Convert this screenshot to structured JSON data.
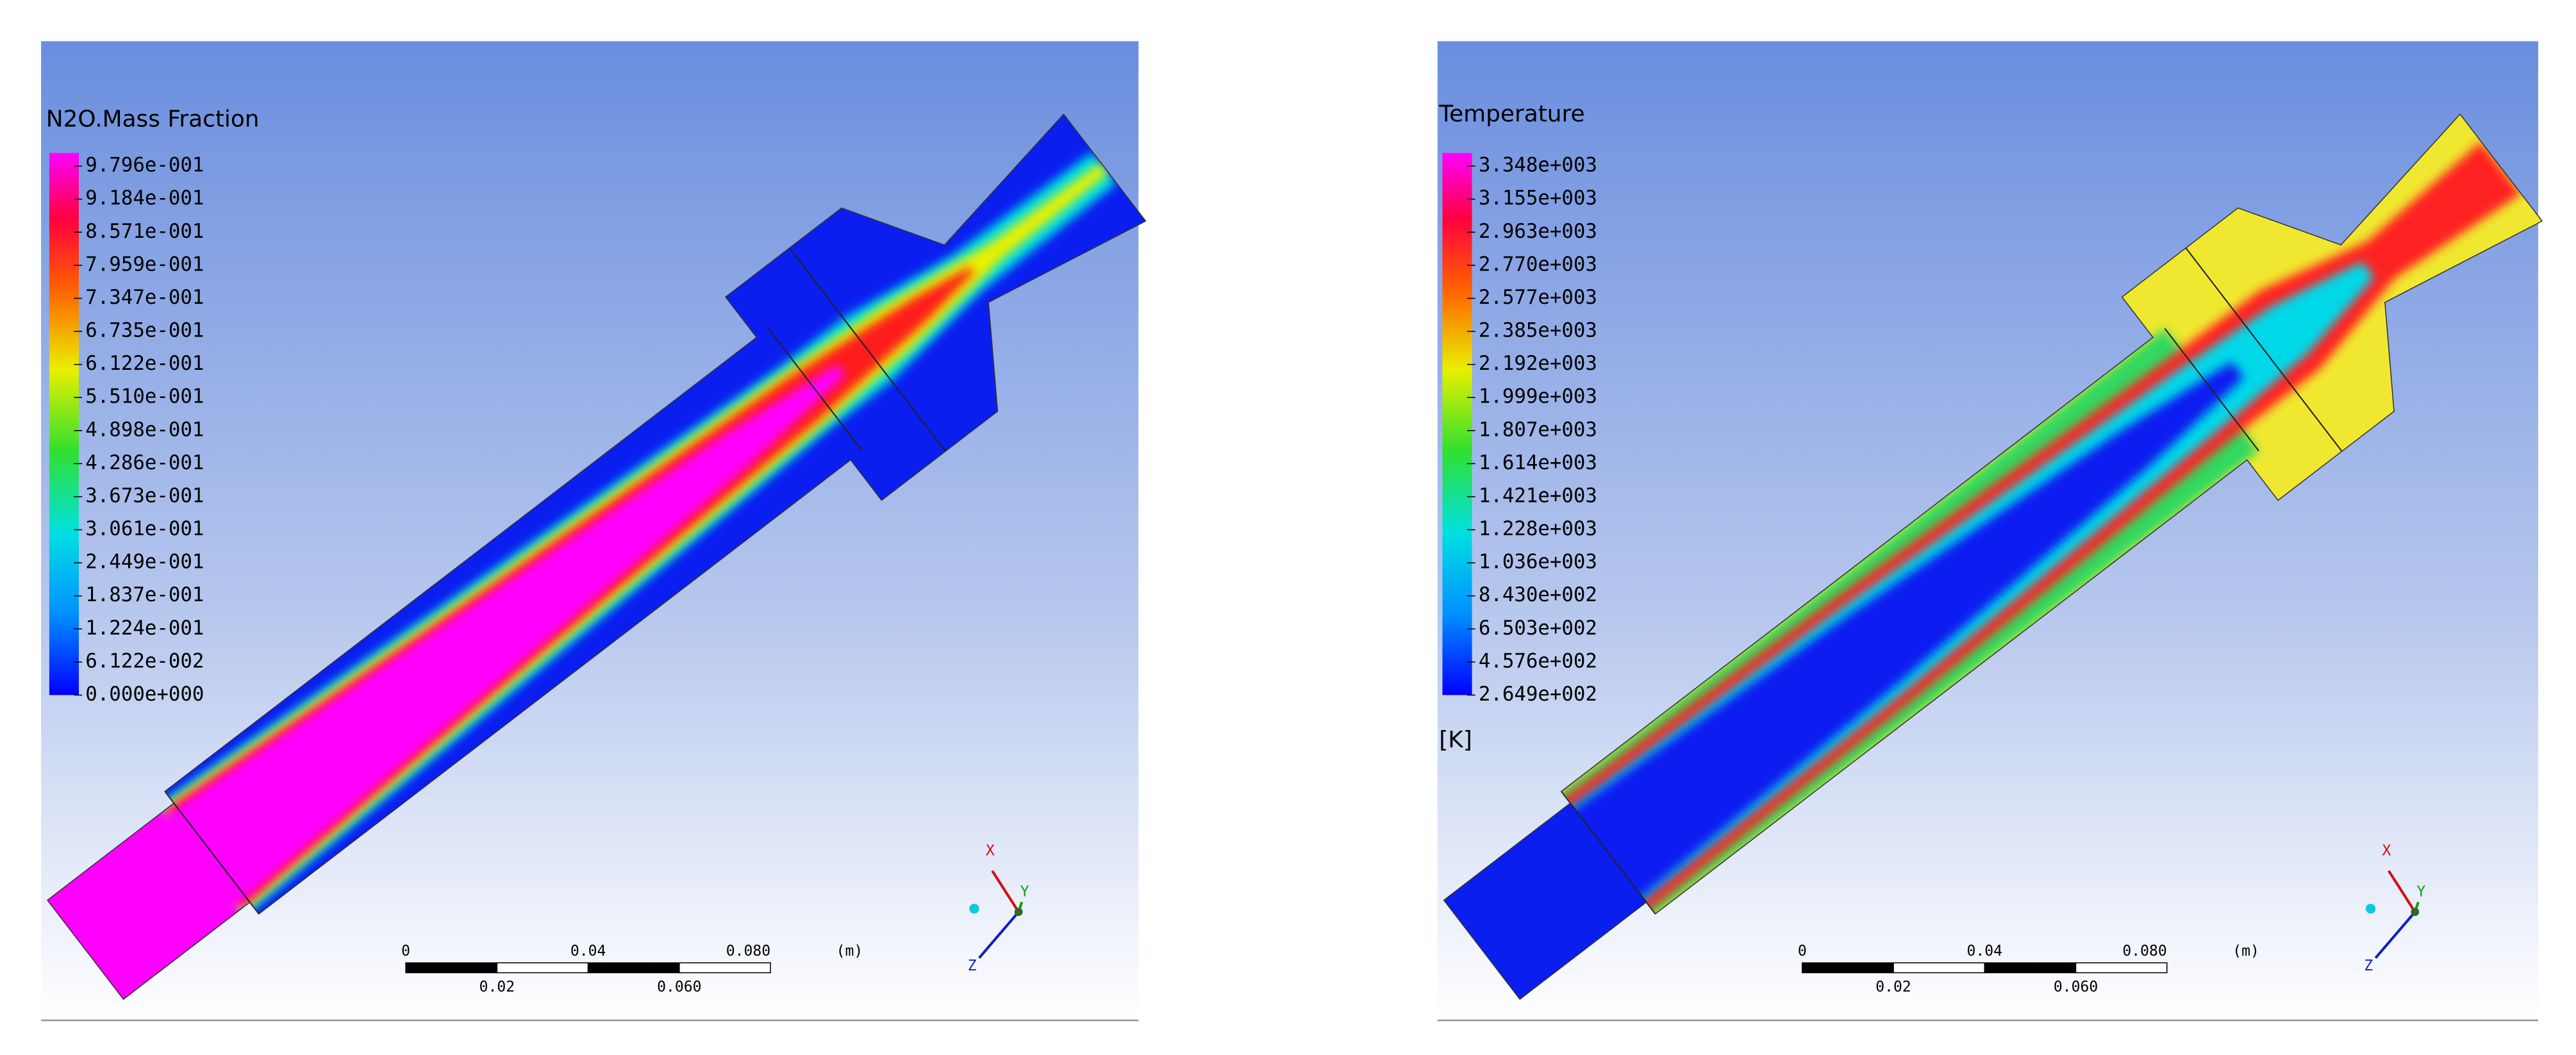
{
  "panels": [
    {
      "legend": {
        "title": "N2O.Mass Fraction",
        "labels": [
          "9.796e-001",
          "9.184e-001",
          "8.571e-001",
          "7.959e-001",
          "7.347e-001",
          "6.735e-001",
          "6.122e-001",
          "5.510e-001",
          "4.898e-001",
          "4.286e-001",
          "3.673e-001",
          "3.061e-001",
          "2.449e-001",
          "1.837e-001",
          "1.224e-001",
          "6.122e-002",
          "0.000e+000"
        ]
      },
      "scale_bar": {
        "top_labels": [
          "0",
          "0.04",
          "0.080"
        ],
        "unit": "(m)",
        "bottom_labels": [
          "0.02",
          "0.060"
        ]
      },
      "triad": {
        "x": "X",
        "y": "Y",
        "z": "Z"
      }
    },
    {
      "legend": {
        "title": "Temperature",
        "labels": [
          "3.348e+003",
          "3.155e+003",
          "2.963e+003",
          "2.770e+003",
          "2.577e+003",
          "2.385e+003",
          "2.192e+003",
          "1.999e+003",
          "1.807e+003",
          "1.614e+003",
          "1.421e+003",
          "1.228e+003",
          "1.036e+003",
          "8.430e+002",
          "6.503e+002",
          "4.576e+002",
          "2.649e+002"
        ],
        "unit": "[K]"
      },
      "scale_bar": {
        "top_labels": [
          "0",
          "0.04",
          "0.080"
        ],
        "unit": "(m)",
        "bottom_labels": [
          "0.02",
          "0.060"
        ]
      },
      "triad": {
        "x": "X",
        "y": "Y",
        "z": "Z"
      }
    }
  ]
}
